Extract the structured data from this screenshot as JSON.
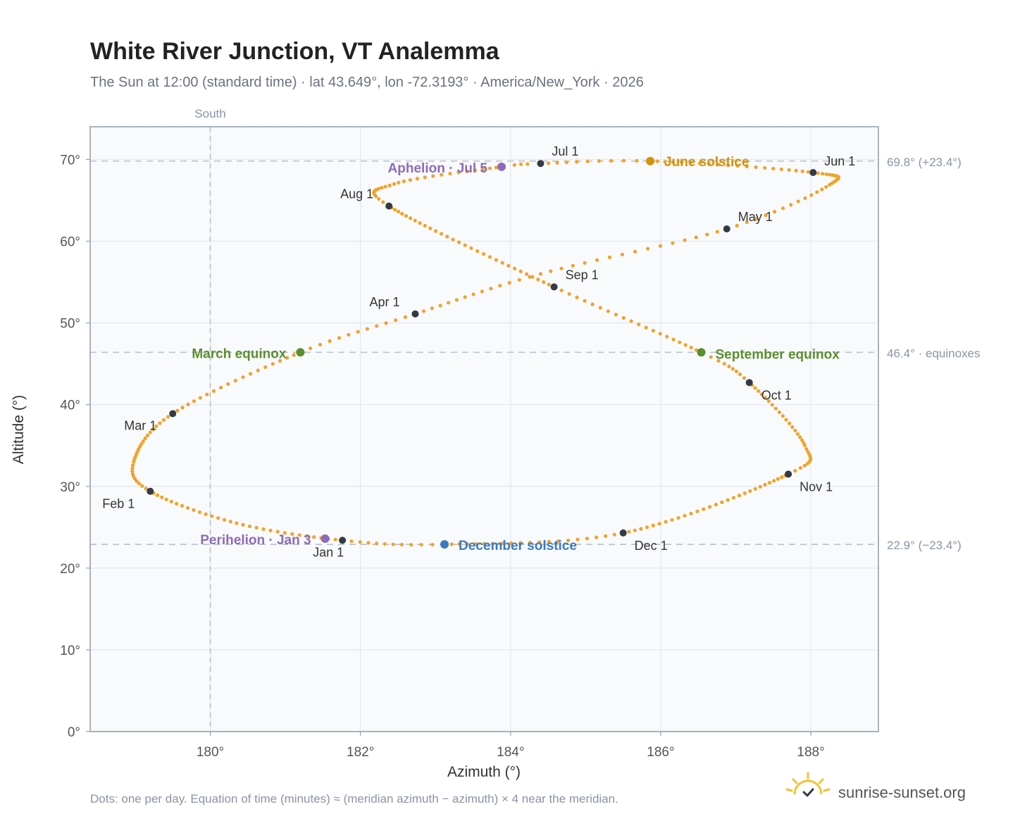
{
  "title": "White River Junction, VT Analemma",
  "subtitle": "The Sun at 12:00 (standard time) · lat 43.649°, lon -72.3193° · America/New_York · 2026",
  "footnote": "Dots: one per day. Equation of time (minutes) ≈ (meridian azimuth − azimuth) × 4 near the meridian.",
  "brand": {
    "name": "sunrise-sunset.org",
    "icon": "sun-logo-icon"
  },
  "colors": {
    "path": "#f0a32a",
    "month_dot": "#333a45",
    "june_solstice": "#d4920a",
    "december_solstice": "#3a7abf",
    "equinox": "#5b8f2e",
    "apsis": "#8e6ab8",
    "plot_bg": "#f8fafc",
    "grid": "#e2e8f0",
    "ref_line": "#b9c0c8"
  },
  "chart_data": {
    "type": "scatter",
    "xlabel": "Azimuth (°)",
    "ylabel": "Altitude (°)",
    "xlim": [
      178.4,
      188.9
    ],
    "ylim": [
      0,
      74
    ],
    "x_ticks": [
      180,
      182,
      184,
      186,
      188
    ],
    "x_tick_labels": [
      "180°",
      "182°",
      "184°",
      "186°",
      "188°"
    ],
    "y_ticks": [
      0,
      10,
      20,
      30,
      40,
      50,
      60,
      70
    ],
    "y_tick_labels": [
      "0°",
      "10°",
      "20°",
      "30°",
      "40°",
      "50°",
      "60°",
      "70°"
    ],
    "grid": true,
    "vertical_reference": {
      "x": 180,
      "label": "South"
    },
    "horizontal_references": [
      {
        "y": 69.8,
        "label": "69.8° (+23.4°)"
      },
      {
        "y": 46.4,
        "label": "46.4° · equinoxes"
      },
      {
        "y": 22.9,
        "label": "22.9° (−23.4°)"
      }
    ],
    "month_points": [
      {
        "label": "Jan 1",
        "az": 181.76,
        "alt": 23.4
      },
      {
        "label": "Feb 1",
        "az": 179.2,
        "alt": 29.4
      },
      {
        "label": "Mar 1",
        "az": 179.5,
        "alt": 38.9
      },
      {
        "label": "Apr 1",
        "az": 182.73,
        "alt": 51.1
      },
      {
        "label": "May 1",
        "az": 186.88,
        "alt": 61.5
      },
      {
        "label": "Jun 1",
        "az": 188.03,
        "alt": 68.4
      },
      {
        "label": "Jul 1",
        "az": 184.4,
        "alt": 69.5
      },
      {
        "label": "Aug 1",
        "az": 182.38,
        "alt": 64.3
      },
      {
        "label": "Sep 1",
        "az": 184.58,
        "alt": 54.4
      },
      {
        "label": "Oct 1",
        "az": 187.18,
        "alt": 42.7
      },
      {
        "label": "Nov 1",
        "az": 187.7,
        "alt": 31.5
      },
      {
        "label": "Dec 1",
        "az": 185.5,
        "alt": 24.3
      }
    ],
    "events": [
      {
        "label": "June solstice",
        "az": 185.86,
        "alt": 69.8,
        "kind": "june_solstice"
      },
      {
        "label": "December solstice",
        "az": 183.12,
        "alt": 22.9,
        "kind": "december_solstice"
      },
      {
        "label": "March equinox",
        "az": 181.2,
        "alt": 46.4,
        "kind": "equinox"
      },
      {
        "label": "September equinox",
        "az": 186.54,
        "alt": 46.4,
        "kind": "equinox"
      },
      {
        "label": "Aphelion · Jul 5",
        "az": 183.88,
        "alt": 69.1,
        "kind": "apsis"
      },
      {
        "label": "Perihelion · Jan 3",
        "az": 181.53,
        "alt": 23.6,
        "kind": "apsis"
      }
    ],
    "daily_path_anchors": [
      {
        "date": "Jan 1",
        "az": 181.76,
        "alt": 23.4
      },
      {
        "date": "Jan 16",
        "az": 180.35,
        "alt": 25.5
      },
      {
        "date": "Feb 1",
        "az": 179.2,
        "alt": 29.4
      },
      {
        "date": "Feb 12",
        "az": 178.98,
        "alt": 33.0
      },
      {
        "date": "Mar 1",
        "az": 179.5,
        "alt": 38.9
      },
      {
        "date": "Mar 20",
        "az": 181.2,
        "alt": 46.4
      },
      {
        "date": "Apr 1",
        "az": 182.73,
        "alt": 51.1
      },
      {
        "date": "Apr 15",
        "az": 184.4,
        "alt": 56.0
      },
      {
        "date": "May 1",
        "az": 186.88,
        "alt": 61.5
      },
      {
        "date": "May 15",
        "az": 188.25,
        "alt": 66.9
      },
      {
        "date": "Jun 1",
        "az": 188.03,
        "alt": 68.4
      },
      {
        "date": "Jun 21",
        "az": 185.86,
        "alt": 69.8
      },
      {
        "date": "Jul 1",
        "az": 184.4,
        "alt": 69.5
      },
      {
        "date": "Jul 5",
        "az": 183.88,
        "alt": 69.1
      },
      {
        "date": "Jul 20",
        "az": 182.45,
        "alt": 67.0
      },
      {
        "date": "Aug 1",
        "az": 182.38,
        "alt": 64.3
      },
      {
        "date": "Sep 1",
        "az": 184.58,
        "alt": 54.4
      },
      {
        "date": "Sep 22",
        "az": 186.54,
        "alt": 46.4
      },
      {
        "date": "Oct 1",
        "az": 187.18,
        "alt": 42.7
      },
      {
        "date": "Oct 20",
        "az": 187.92,
        "alt": 35.0
      },
      {
        "date": "Nov 1",
        "az": 187.7,
        "alt": 31.5
      },
      {
        "date": "Dec 1",
        "az": 185.5,
        "alt": 24.3
      },
      {
        "date": "Dec 21",
        "az": 183.12,
        "alt": 22.9
      },
      {
        "date": "Jan 1",
        "az": 181.76,
        "alt": 23.4
      }
    ]
  }
}
